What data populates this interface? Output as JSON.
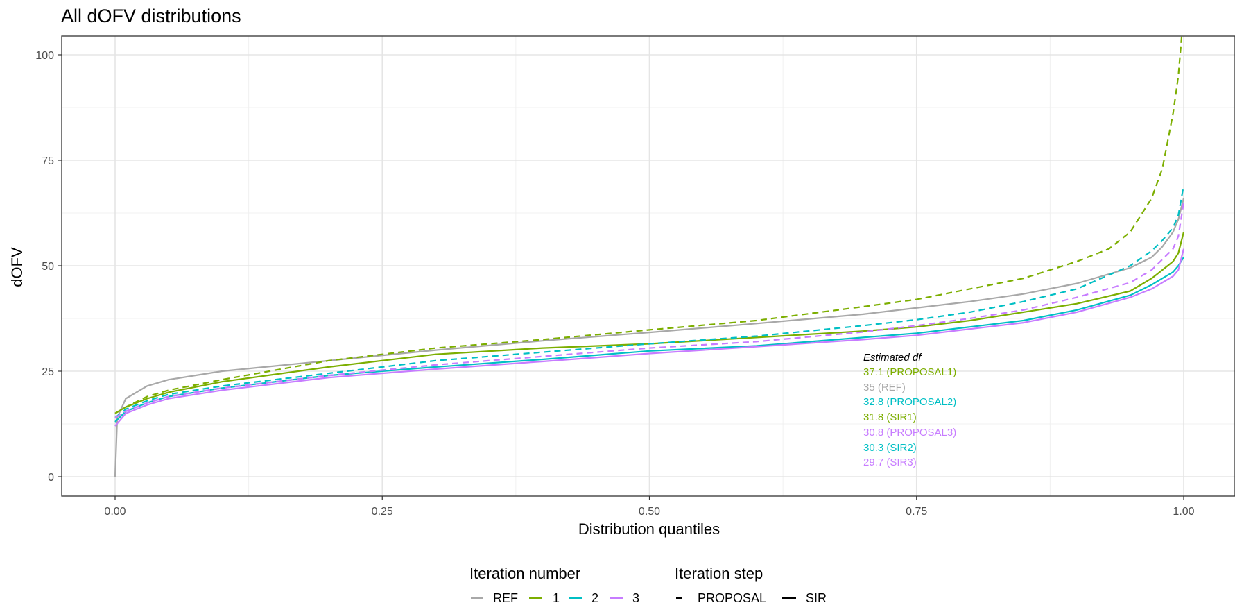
{
  "chart_data": {
    "type": "line",
    "title": "All dOFV distributions",
    "xlabel": "Distribution quantiles",
    "ylabel": "dOFV",
    "xlim": [
      -0.05,
      1.05
    ],
    "ylim": [
      -5,
      100
    ],
    "xticks": [
      0,
      0.25,
      0.5,
      0.75,
      1
    ],
    "xtick_labels": [
      "0.00",
      "0.25",
      "0.50",
      "0.75",
      "1.00"
    ],
    "yticks": [
      0,
      25,
      50,
      75,
      100
    ],
    "ytick_labels": [
      "0",
      "25",
      "50",
      "75",
      "100"
    ],
    "grid": true,
    "legend_position": "bottom",
    "legends": [
      {
        "title": "Iteration number",
        "entries": [
          {
            "label": "REF",
            "color": "#A8A8A8"
          },
          {
            "label": "1",
            "color": "#7CAE00"
          },
          {
            "label": "2",
            "color": "#00BFC4"
          },
          {
            "label": "3",
            "color": "#C77CFF"
          }
        ]
      },
      {
        "title": "Iteration step",
        "entries": [
          {
            "label": "PROPOSAL",
            "linetype": "dashed"
          },
          {
            "label": "SIR",
            "linetype": "solid"
          }
        ]
      }
    ],
    "annotation": {
      "title": "Estimated df",
      "lines": [
        {
          "text": "37.1 (PROPOSAL1)",
          "color": "#7CAE00"
        },
        {
          "text": "35 (REF)",
          "color": "#A8A8A8"
        },
        {
          "text": "32.8 (PROPOSAL2)",
          "color": "#00BFC4"
        },
        {
          "text": "31.8 (SIR1)",
          "color": "#7CAE00"
        },
        {
          "text": "30.8 (PROPOSAL3)",
          "color": "#C77CFF"
        },
        {
          "text": "30.3 (SIR2)",
          "color": "#00BFC4"
        },
        {
          "text": "29.7 (SIR3)",
          "color": "#C77CFF"
        }
      ]
    },
    "series": [
      {
        "iteration": "REF",
        "step": "SIR",
        "color": "#A8A8A8",
        "linetype": "solid",
        "x": [
          0,
          0.002,
          0.01,
          0.03,
          0.05,
          0.1,
          0.2,
          0.3,
          0.4,
          0.5,
          0.6,
          0.7,
          0.8,
          0.85,
          0.9,
          0.95,
          0.97,
          0.98,
          0.99,
          0.995,
          1.0
        ],
        "y": [
          0,
          14,
          18.5,
          21.5,
          23,
          25,
          27.5,
          30,
          32.2,
          34.2,
          36.3,
          38.5,
          41.5,
          43.3,
          45.8,
          49.5,
          52,
          54.5,
          58,
          61,
          66
        ]
      },
      {
        "iteration": "1",
        "step": "PROPOSAL",
        "color": "#7CAE00",
        "linetype": "dashed",
        "x": [
          0,
          0.01,
          0.03,
          0.05,
          0.1,
          0.2,
          0.3,
          0.4,
          0.5,
          0.6,
          0.7,
          0.75,
          0.8,
          0.85,
          0.9,
          0.93,
          0.95,
          0.97,
          0.98,
          0.99,
          0.995,
          1.0
        ],
        "y": [
          15,
          16.5,
          19,
          20.5,
          23,
          27.5,
          30.5,
          32.5,
          34.8,
          37,
          40.3,
          42,
          44.5,
          47,
          51,
          54,
          58,
          66,
          73,
          86,
          95,
          110
        ]
      },
      {
        "iteration": "1",
        "step": "SIR",
        "color": "#7CAE00",
        "linetype": "solid",
        "x": [
          0,
          0.01,
          0.03,
          0.05,
          0.1,
          0.2,
          0.3,
          0.4,
          0.5,
          0.6,
          0.7,
          0.75,
          0.8,
          0.85,
          0.9,
          0.95,
          0.97,
          0.98,
          0.99,
          0.995,
          1.0
        ],
        "y": [
          15,
          16.5,
          18.5,
          20,
          22.5,
          26,
          29,
          30.5,
          31.5,
          33,
          34.5,
          35.5,
          37,
          39,
          41,
          44,
          47,
          49,
          51,
          53,
          58
        ]
      },
      {
        "iteration": "2",
        "step": "PROPOSAL",
        "color": "#00BFC4",
        "linetype": "dashed",
        "x": [
          0,
          0.01,
          0.03,
          0.05,
          0.1,
          0.2,
          0.3,
          0.4,
          0.5,
          0.6,
          0.7,
          0.75,
          0.8,
          0.85,
          0.9,
          0.95,
          0.97,
          0.98,
          0.99,
          0.995,
          1.0
        ],
        "y": [
          14,
          16,
          18,
          19.5,
          21.5,
          24.5,
          27.5,
          29.5,
          31.5,
          33.3,
          35.8,
          37.2,
          39,
          41.5,
          44.5,
          50,
          53.5,
          56,
          59,
          62,
          69
        ]
      },
      {
        "iteration": "2",
        "step": "SIR",
        "color": "#00BFC4",
        "linetype": "solid",
        "x": [
          0,
          0.01,
          0.03,
          0.05,
          0.1,
          0.2,
          0.3,
          0.4,
          0.5,
          0.6,
          0.7,
          0.75,
          0.8,
          0.85,
          0.9,
          0.95,
          0.97,
          0.98,
          0.99,
          0.995,
          1.0
        ],
        "y": [
          13,
          15.5,
          17.5,
          19,
          21,
          24,
          26,
          27.8,
          29.8,
          31,
          33,
          34,
          35.5,
          37,
          39.5,
          43,
          45.5,
          47,
          48.5,
          50,
          52
        ]
      },
      {
        "iteration": "3",
        "step": "PROPOSAL",
        "color": "#C77CFF",
        "linetype": "dashed",
        "x": [
          0,
          0.01,
          0.03,
          0.05,
          0.1,
          0.2,
          0.3,
          0.4,
          0.5,
          0.6,
          0.7,
          0.75,
          0.8,
          0.85,
          0.9,
          0.95,
          0.97,
          0.98,
          0.99,
          0.995,
          1.0
        ],
        "y": [
          14,
          15.5,
          17.5,
          19,
          21,
          24,
          26.5,
          28.5,
          30.5,
          32,
          34.3,
          35.8,
          37.5,
          39.5,
          42.5,
          46,
          49,
          51.5,
          54,
          57,
          65
        ]
      },
      {
        "iteration": "3",
        "step": "SIR",
        "color": "#C77CFF",
        "linetype": "solid",
        "x": [
          0,
          0.01,
          0.03,
          0.05,
          0.1,
          0.2,
          0.3,
          0.4,
          0.5,
          0.6,
          0.7,
          0.75,
          0.8,
          0.85,
          0.9,
          0.95,
          0.97,
          0.98,
          0.99,
          0.995,
          1.0
        ],
        "y": [
          12,
          15,
          17,
          18.5,
          20.5,
          23.5,
          25.5,
          27.3,
          29.2,
          30.8,
          32.5,
          33.5,
          35,
          36.5,
          39,
          42.5,
          44.5,
          46,
          47.5,
          49,
          54
        ]
      }
    ]
  }
}
